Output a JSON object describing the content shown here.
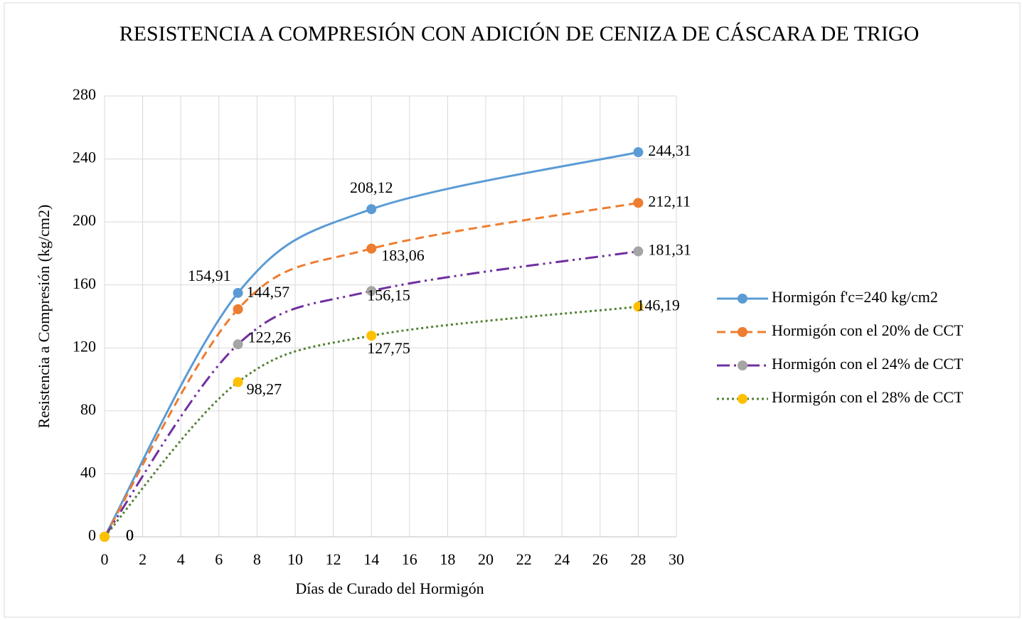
{
  "chart_data": {
    "type": "line",
    "title": "RESISTENCIA A COMPRESIÓN CON ADICIÓN DE CENIZA DE CÁSCARA DE TRIGO",
    "x_label": "Días de Curado del Hormigón",
    "y_label": "Resistencia a Compresión (kg/cm2)",
    "x": [
      0,
      7,
      14,
      28
    ],
    "series": [
      {
        "name": "Hormigón f'c=240 kg/cm2",
        "color": "#5b9bd5",
        "marker_color": "#5b9bd5",
        "dash": "solid",
        "values": [
          0,
          154.91,
          208.12,
          244.31
        ],
        "value_labels": [
          "0",
          "154,91",
          "208,12",
          "244,31"
        ]
      },
      {
        "name": "Hormigón con el 20% de CCT",
        "color": "#ed7d31",
        "marker_color": "#ed7d31",
        "dash": "dash",
        "values": [
          0,
          144.57,
          183.06,
          212.11
        ],
        "value_labels": [
          "0",
          "144,57",
          "183,06",
          "212,11"
        ]
      },
      {
        "name": "Hormigón con el 24% de CCT",
        "color": "#7030a0",
        "marker_color": "#a5a5a5",
        "dash": "dashdotdot",
        "values": [
          0,
          122.26,
          156.15,
          181.31
        ],
        "value_labels": [
          "0",
          "122,26",
          "156,15",
          "181,31"
        ]
      },
      {
        "name": "Hormigón con el 28% de CCT",
        "color": "#548235",
        "marker_color": "#ffc000",
        "dash": "dot",
        "values": [
          0,
          98.27,
          127.75,
          146.19
        ],
        "value_labels": [
          "0",
          "98,27",
          "127,75",
          "146,19"
        ]
      }
    ],
    "xlim": [
      0,
      30
    ],
    "xticks": [
      0,
      2,
      4,
      6,
      8,
      10,
      12,
      14,
      16,
      18,
      20,
      22,
      24,
      26,
      28,
      30
    ],
    "ylim": [
      0,
      280
    ],
    "yticks": [
      0,
      40,
      80,
      120,
      160,
      200,
      240,
      280
    ],
    "grid": true,
    "legend": "right"
  }
}
